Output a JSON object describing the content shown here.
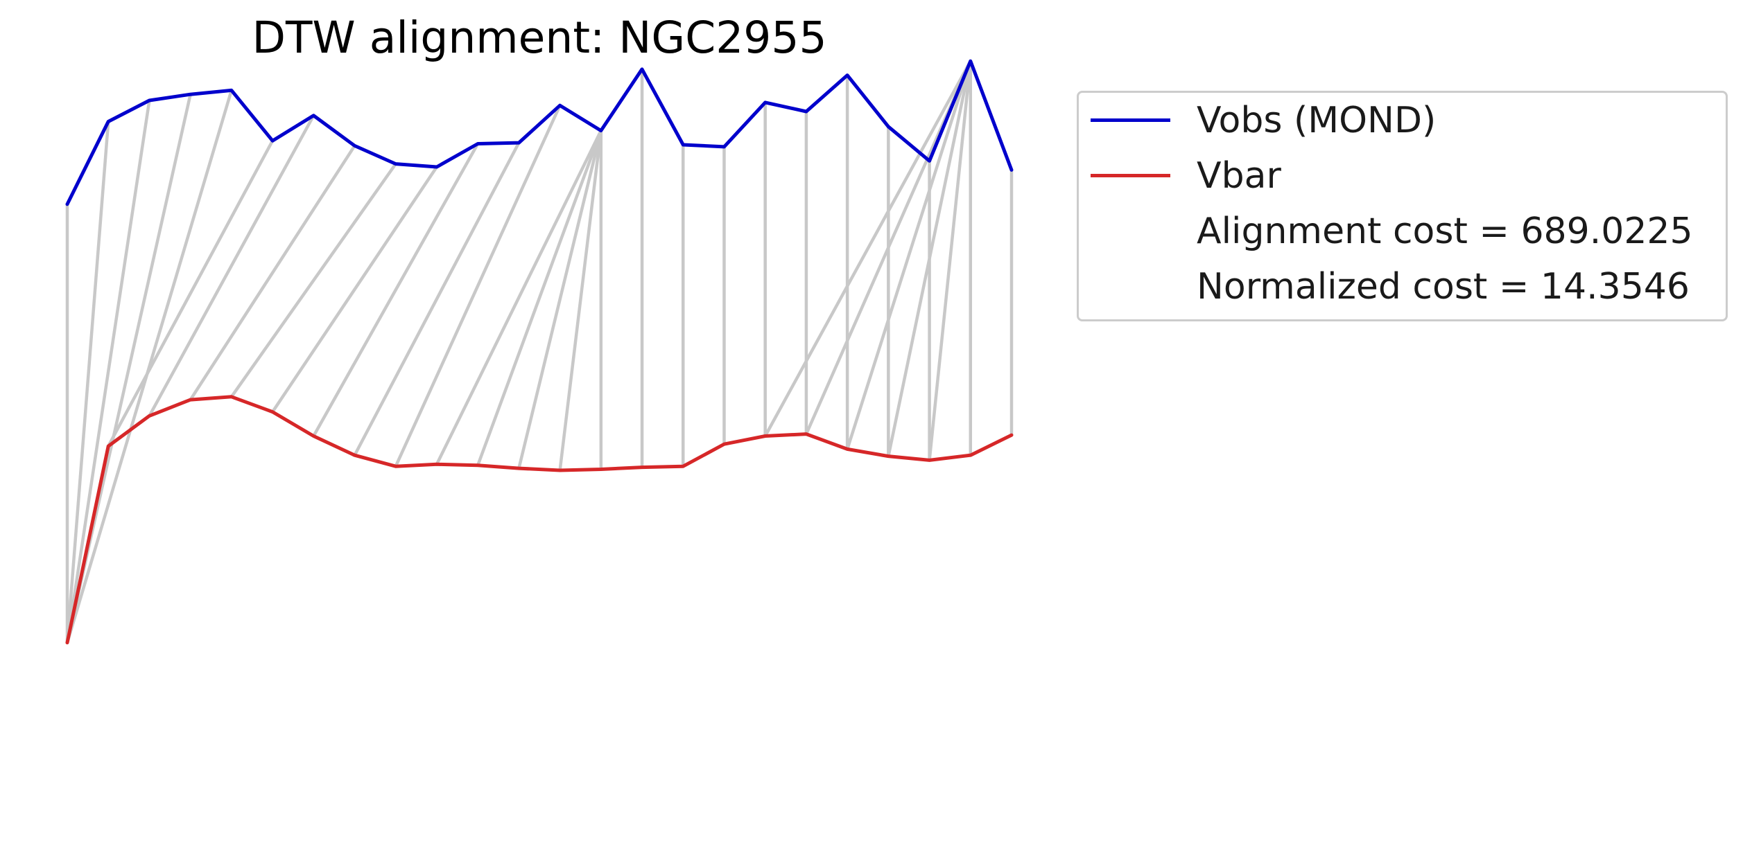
{
  "chart_data": {
    "type": "line",
    "title": "DTW alignment: NGC2955",
    "xlabel": "",
    "ylabel": "",
    "axes_visible": false,
    "grid": false,
    "legend_placement": "outside-top-right",
    "x": [
      0,
      1,
      2,
      3,
      4,
      5,
      6,
      7,
      8,
      9,
      10,
      11,
      12,
      13,
      14,
      15,
      16,
      17,
      18,
      19,
      20,
      21,
      22,
      23
    ],
    "series": [
      {
        "name": "Vobs (MOND)",
        "color": "#0000cc",
        "values": [
          325,
          407,
          428,
          434,
          438,
          388,
          413,
          383,
          365,
          362,
          385,
          386,
          423,
          398,
          459,
          384,
          382,
          426,
          417,
          453,
          402,
          368,
          467,
          359
        ]
      },
      {
        "name": "Vbar",
        "color": "#d62728",
        "values": [
          -110,
          85,
          115,
          131,
          134,
          119,
          95,
          76,
          65,
          67,
          66,
          63,
          61,
          62,
          64,
          65,
          87,
          95,
          97,
          82,
          75,
          71,
          76,
          96
        ]
      }
    ],
    "alignment_lines_color": "#c8c8c8",
    "alignment_path": [
      [
        0,
        0
      ],
      [
        1,
        0
      ],
      [
        2,
        0
      ],
      [
        3,
        0
      ],
      [
        4,
        0
      ],
      [
        5,
        1
      ],
      [
        6,
        2
      ],
      [
        7,
        3
      ],
      [
        8,
        4
      ],
      [
        9,
        5
      ],
      [
        10,
        6
      ],
      [
        11,
        7
      ],
      [
        12,
        8
      ],
      [
        13,
        9
      ],
      [
        13,
        10
      ],
      [
        13,
        11
      ],
      [
        13,
        12
      ],
      [
        13,
        13
      ],
      [
        14,
        14
      ],
      [
        15,
        15
      ],
      [
        16,
        16
      ],
      [
        17,
        17
      ],
      [
        18,
        18
      ],
      [
        19,
        19
      ],
      [
        20,
        20
      ],
      [
        21,
        21
      ],
      [
        22,
        22
      ],
      [
        22,
        21
      ],
      [
        22,
        20
      ],
      [
        22,
        19
      ],
      [
        22,
        18
      ],
      [
        22,
        17
      ],
      [
        23,
        23
      ]
    ],
    "annotations": [
      "Alignment cost = 689.0225",
      "Normalized cost = 14.3546"
    ]
  }
}
